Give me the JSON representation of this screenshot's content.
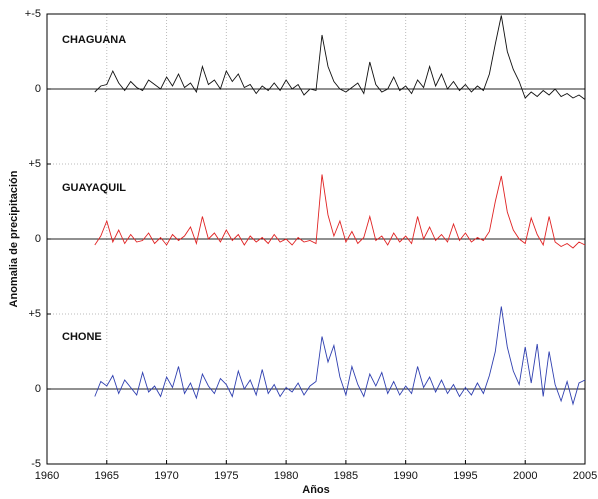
{
  "chart_data": {
    "type": "line",
    "x_label": "Años",
    "y_label": "Anomalia de precipitación",
    "xlim": [
      1960,
      2005
    ],
    "xticks": [
      1960,
      1965,
      1970,
      1975,
      1980,
      1985,
      1990,
      1995,
      2000,
      2005
    ],
    "ylim": [
      -5,
      25
    ],
    "yticks": [
      -5,
      0,
      {
        "value": 5,
        "label": "+5"
      },
      {
        "value": 10,
        "label": "0"
      },
      {
        "value": 15,
        "label": "+5"
      },
      {
        "value": 20,
        "label": "0"
      },
      {
        "value": 25,
        "label": "+-5"
      }
    ],
    "grid": true,
    "x": [
      1964,
      1964.5,
      1965,
      1965.5,
      1966,
      1966.5,
      1967,
      1967.5,
      1968,
      1968.5,
      1969,
      1969.5,
      1970,
      1970.5,
      1971,
      1971.5,
      1972,
      1972.5,
      1973,
      1973.5,
      1974,
      1974.5,
      1975,
      1975.5,
      1976,
      1976.5,
      1977,
      1977.5,
      1978,
      1978.5,
      1979,
      1979.5,
      1980,
      1980.5,
      1981,
      1981.5,
      1982,
      1982.5,
      1983,
      1983.5,
      1984,
      1984.5,
      1985,
      1985.5,
      1986,
      1986.5,
      1987,
      1987.5,
      1988,
      1988.5,
      1989,
      1989.5,
      1990,
      1990.5,
      1991,
      1991.5,
      1992,
      1992.5,
      1993,
      1993.5,
      1994,
      1994.5,
      1995,
      1995.5,
      1996,
      1996.5,
      1997,
      1997.5,
      1998,
      1998.5,
      1999,
      1999.5,
      2000,
      2000.5,
      2001,
      2001.5,
      2002,
      2002.5,
      2003,
      2003.5,
      2004,
      2004.5,
      2005
    ],
    "series": [
      {
        "name": "CHAGUANA",
        "color": "#111111",
        "values": [
          19.8,
          20.2,
          20.3,
          21.2,
          20.4,
          19.9,
          20.5,
          20.1,
          19.9,
          20.6,
          20.3,
          20.0,
          20.8,
          20.2,
          21.0,
          20.1,
          20.4,
          19.8,
          21.5,
          20.3,
          20.6,
          20.0,
          21.2,
          20.5,
          21.0,
          20.1,
          20.3,
          19.7,
          20.2,
          19.9,
          20.4,
          19.9,
          20.6,
          20.0,
          20.3,
          19.6,
          20.0,
          19.9,
          23.6,
          21.5,
          20.5,
          20.0,
          19.8,
          20.1,
          20.4,
          19.7,
          21.8,
          20.3,
          19.8,
          20.0,
          20.8,
          19.9,
          20.2,
          19.7,
          20.6,
          20.1,
          21.5,
          20.2,
          21.0,
          20.0,
          20.5,
          19.9,
          20.3,
          19.8,
          20.2,
          19.9,
          21.0,
          23.0,
          24.9,
          22.5,
          21.3,
          20.5,
          19.4,
          19.8,
          19.5,
          19.9,
          19.6,
          20.0,
          19.5,
          19.7,
          19.4,
          19.6,
          19.3
        ]
      },
      {
        "name": "GUAYAQUIL",
        "color": "#e02424",
        "values": [
          9.6,
          10.2,
          11.2,
          9.8,
          10.6,
          9.7,
          10.3,
          9.8,
          9.9,
          10.4,
          9.7,
          10.1,
          9.6,
          10.3,
          9.9,
          10.2,
          10.8,
          9.7,
          11.5,
          10.0,
          10.4,
          9.8,
          10.6,
          9.9,
          10.3,
          9.6,
          10.2,
          9.8,
          10.1,
          9.7,
          10.3,
          9.8,
          10.0,
          9.6,
          10.1,
          9.8,
          9.9,
          9.7,
          14.3,
          11.6,
          10.2,
          11.2,
          9.8,
          10.5,
          9.7,
          10.1,
          11.5,
          9.9,
          10.2,
          9.6,
          10.4,
          9.8,
          10.2,
          9.7,
          11.5,
          10.0,
          10.8,
          9.9,
          10.3,
          9.8,
          11.0,
          9.9,
          10.4,
          9.8,
          10.1,
          9.9,
          10.5,
          12.5,
          14.2,
          11.8,
          10.6,
          10.0,
          9.7,
          11.4,
          10.3,
          9.6,
          11.5,
          9.8,
          9.5,
          9.7,
          9.4,
          9.8,
          9.6
        ]
      },
      {
        "name": "CHONE",
        "color": "#3040b0",
        "values": [
          -0.5,
          0.5,
          0.2,
          0.9,
          -0.3,
          0.6,
          0.1,
          -0.4,
          1.1,
          -0.2,
          0.2,
          -0.5,
          0.8,
          0.1,
          1.5,
          -0.3,
          0.4,
          -0.6,
          1.0,
          0.2,
          -0.3,
          0.7,
          0.3,
          -0.5,
          1.2,
          0.0,
          0.6,
          -0.4,
          1.3,
          -0.3,
          0.3,
          -0.5,
          0.1,
          -0.2,
          0.4,
          -0.4,
          0.2,
          0.5,
          3.5,
          1.8,
          2.9,
          0.8,
          -0.4,
          1.5,
          0.3,
          -0.5,
          1.0,
          0.2,
          1.1,
          -0.3,
          0.5,
          -0.4,
          0.2,
          -0.3,
          1.5,
          0.1,
          0.8,
          -0.2,
          0.6,
          -0.3,
          0.3,
          -0.5,
          0.1,
          -0.4,
          0.4,
          -0.3,
          0.9,
          2.5,
          5.5,
          2.8,
          1.2,
          0.3,
          2.8,
          0.4,
          3.0,
          -0.5,
          2.5,
          0.3,
          -0.8,
          0.5,
          -1.0,
          0.4,
          0.6
        ]
      }
    ]
  }
}
